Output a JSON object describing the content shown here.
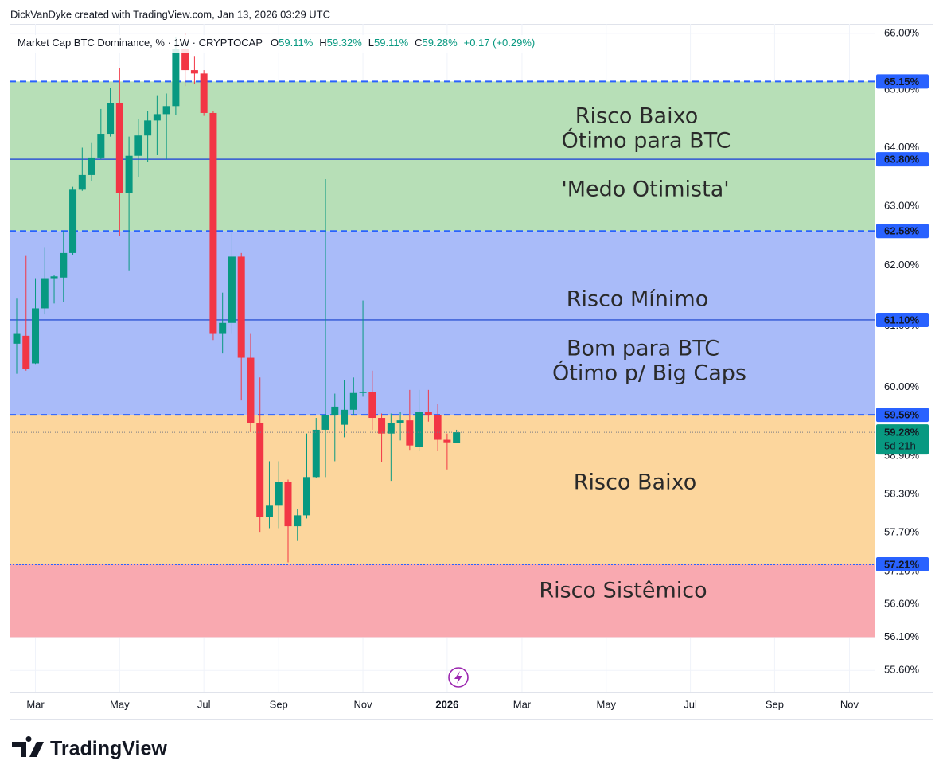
{
  "chart_data": {
    "type": "candlestick",
    "credit": "DickVanDyke created with TradingView.com, Jan 13, 2026 03:29 UTC",
    "legend": {
      "symbol": "Market Cap BTC Dominance, %",
      "interval": "1W",
      "exchange": "CRYPTOCAP",
      "o_label": "O",
      "o": "59.11%",
      "h_label": "H",
      "h": "59.32%",
      "l_label": "L",
      "l": "59.11%",
      "c_label": "C",
      "c": "59.28%",
      "change": "+0.17 (+0.29%)"
    },
    "brand": "TradingView",
    "log_scale": true,
    "grid": true,
    "up_color": "#089981",
    "down_color": "#f23645",
    "categories": [
      null,
      null,
      "Mar",
      null,
      null,
      null,
      null,
      null,
      null,
      null,
      null,
      "May",
      null,
      null,
      null,
      null,
      null,
      null,
      null,
      null,
      "Jul",
      null,
      null,
      null,
      null,
      null,
      null,
      null,
      "Sep",
      null,
      null,
      null,
      null,
      null,
      null,
      null,
      null,
      "Nov",
      null,
      null,
      null,
      null,
      null,
      null,
      null,
      null,
      "2026",
      null,
      null,
      null,
      null,
      null,
      null,
      null,
      "Mar",
      null,
      null,
      null,
      null,
      null,
      null,
      null,
      null,
      "May",
      null,
      null,
      null,
      null,
      null,
      null,
      null,
      null,
      "Jul",
      null,
      null,
      null,
      null,
      null,
      null,
      null,
      null,
      "Sep",
      null,
      null,
      null,
      null,
      null,
      null,
      null,
      "Nov",
      null,
      null
    ],
    "open": [
      60.71,
      60.84,
      60.39,
      61.29,
      61.79,
      61.8,
      62.21,
      63.28,
      63.53,
      63.83,
      64.24,
      64.77,
      63.22,
      63.86,
      64.21,
      64.47,
      64.58,
      64.72,
      65.72,
      65.35,
      65.29,
      64.6,
      60.87,
      61.05,
      62.15,
      60.48,
      59.43,
      57.94,
      58.12,
      58.49,
      57.8,
      57.97,
      58.57,
      59.32,
      59.55,
      59.4,
      59.64,
      59.91,
      59.93,
      59.51,
      59.26,
      59.43,
      59.47,
      59.05,
      59.6,
      59.55,
      59.16,
      59.11,
      null,
      null,
      null,
      null,
      null,
      null,
      null,
      null,
      null,
      null,
      null,
      null,
      null,
      null,
      null,
      null,
      null,
      null,
      null,
      null,
      null,
      null,
      null,
      null,
      null,
      null,
      null,
      null,
      null,
      null,
      null,
      null,
      null,
      null,
      null,
      null,
      null,
      null,
      null,
      null,
      null,
      null,
      null,
      null
    ],
    "high": [
      61.45,
      62.16,
      61.79,
      62.31,
      61.85,
      62.58,
      63.33,
      64.0,
      64.08,
      64.67,
      65.03,
      65.38,
      64.19,
      64.49,
      64.63,
      64.91,
      64.94,
      65.94,
      66.0,
      65.6,
      65.35,
      64.63,
      61.55,
      62.6,
      62.21,
      60.87,
      60.16,
      58.82,
      58.82,
      58.53,
      58.07,
      59.26,
      59.51,
      63.46,
      59.9,
      60.12,
      60.16,
      61.42,
      60.27,
      59.58,
      59.58,
      59.6,
      59.96,
      59.96,
      59.96,
      59.73,
      59.26,
      59.32,
      null,
      null,
      null,
      null,
      null,
      null,
      null,
      null,
      null,
      null,
      null,
      null,
      null,
      null,
      null,
      null,
      null,
      null,
      null,
      null,
      null,
      null,
      null,
      null,
      null,
      null,
      null,
      null,
      null,
      null,
      null,
      null,
      null,
      null,
      null,
      null,
      null,
      null,
      null,
      null,
      null,
      null,
      null,
      null
    ],
    "low": [
      60.22,
      60.27,
      60.38,
      61.19,
      61.37,
      61.4,
      62.18,
      63.26,
      63.43,
      63.8,
      64.19,
      62.5,
      61.92,
      63.5,
      63.75,
      63.87,
      63.8,
      64.56,
      65.07,
      65.1,
      64.55,
      60.77,
      60.55,
      60.87,
      59.79,
      59.28,
      57.7,
      57.77,
      57.77,
      57.24,
      57.57,
      57.92,
      58.55,
      58.57,
      58.82,
      59.2,
      59.55,
      59.85,
      59.32,
      58.81,
      58.51,
      59.15,
      59.0,
      58.98,
      59.45,
      58.98,
      58.69,
      59.11,
      null,
      null,
      null,
      null,
      null,
      null,
      null,
      null,
      null,
      null,
      null,
      null,
      null,
      null,
      null,
      null,
      null,
      null,
      null,
      null,
      null,
      null,
      null,
      null,
      null,
      null,
      null,
      null,
      null,
      null,
      null,
      null,
      null,
      null,
      null,
      null,
      null,
      null,
      null,
      null,
      null,
      null,
      null,
      null
    ],
    "close": [
      60.87,
      60.3,
      61.29,
      61.79,
      61.82,
      62.21,
      63.28,
      63.53,
      63.83,
      64.24,
      64.77,
      63.22,
      63.86,
      64.21,
      64.47,
      64.58,
      64.72,
      65.72,
      65.35,
      65.29,
      64.6,
      60.87,
      61.05,
      62.15,
      60.48,
      59.43,
      57.94,
      58.12,
      58.49,
      57.8,
      57.97,
      58.57,
      59.32,
      59.55,
      59.69,
      59.64,
      59.91,
      59.93,
      59.51,
      59.26,
      59.43,
      59.47,
      59.07,
      59.6,
      59.55,
      59.16,
      59.12,
      59.28,
      null,
      null,
      null,
      null,
      null,
      null,
      null,
      null,
      null,
      null,
      null,
      null,
      null,
      null,
      null,
      null,
      null,
      null,
      null,
      null,
      null,
      null,
      null,
      null,
      null,
      null,
      null,
      null,
      null,
      null,
      null,
      null,
      null,
      null,
      null,
      null,
      null,
      null,
      null,
      null,
      null,
      null,
      null,
      null
    ],
    "ylim": [
      55.27,
      66.14
    ],
    "yticks": [
      {
        "value": 66,
        "label": "66.00%"
      },
      {
        "value": 65,
        "label": "65.00%"
      },
      {
        "value": 64,
        "label": "64.00%"
      },
      {
        "value": 63,
        "label": "63.00%"
      },
      {
        "value": 62,
        "label": "62.00%"
      },
      {
        "value": 61,
        "label": "61.00%"
      },
      {
        "value": 60,
        "label": "60.00%"
      },
      {
        "value": 58.9,
        "label": "58.90%"
      },
      {
        "value": 58.3,
        "label": "58.30%"
      },
      {
        "value": 57.7,
        "label": "57.70%"
      },
      {
        "value": 57.1,
        "label": "57.10%"
      },
      {
        "value": 56.6,
        "label": "56.60%"
      },
      {
        "value": 56.1,
        "label": "56.10%"
      },
      {
        "value": 55.6,
        "label": "55.60%"
      }
    ],
    "zones": [
      {
        "from": 65.15,
        "to": 62.58,
        "color": "#b7dfb7"
      },
      {
        "from": 62.58,
        "to": 59.56,
        "color": "#a9bbf9"
      },
      {
        "from": 59.56,
        "to": 57.21,
        "color": "#fcd69d"
      },
      {
        "from": 57.21,
        "to": 56.1,
        "color": "#f9a9b0"
      }
    ],
    "levels": [
      {
        "value": 65.15,
        "label": "65.15%",
        "style": "dashed",
        "color": "#2962ff"
      },
      {
        "value": 63.8,
        "label": "63.80%",
        "style": "solid",
        "color": "#2f55d4"
      },
      {
        "value": 62.58,
        "label": "62.58%",
        "style": "dashed",
        "color": "#2962ff"
      },
      {
        "value": 61.1,
        "label": "61.10%",
        "style": "solid",
        "color": "#2f55d4"
      },
      {
        "value": 59.56,
        "label": "59.56%",
        "style": "dashed",
        "color": "#2962ff"
      },
      {
        "value": 57.21,
        "label": "57.21%",
        "style": "dotted",
        "color": "#2962ff"
      }
    ],
    "last_price": {
      "value": 59.28,
      "label": "59.28%",
      "countdown": "5d 21h",
      "color": "#089981"
    },
    "annotations": [
      "Risco Baixo",
      "Ótimo para BTC",
      "'Medo Otimista'",
      "Risco Mínimo",
      "Bom para BTC",
      "Ótimo p/ Big Caps",
      "Risco Baixo",
      "Risco Sistêmico"
    ]
  }
}
